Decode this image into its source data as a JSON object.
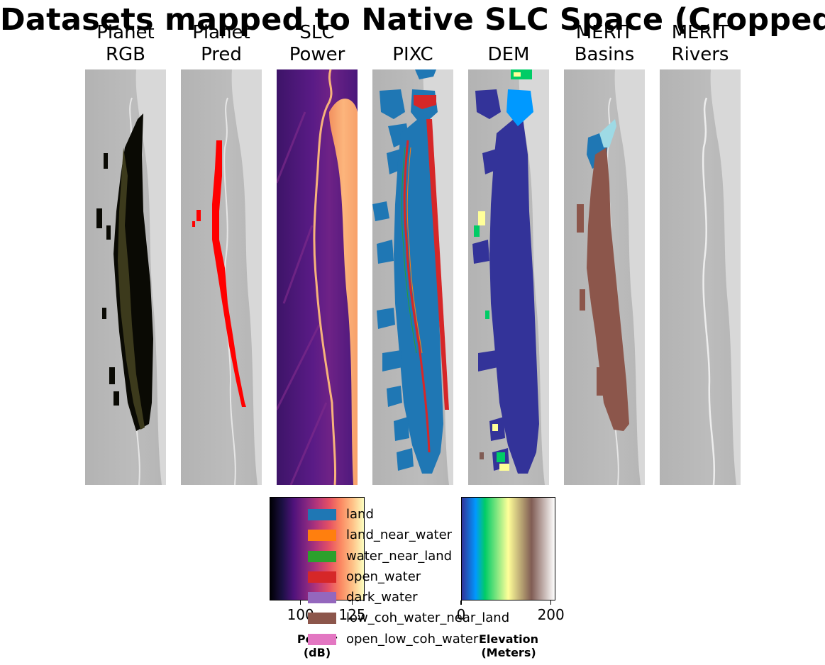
{
  "figure": {
    "suptitle": "Datasets mapped to Native SLC Space (Cropped)"
  },
  "panels": [
    {
      "id": "planet-rgb",
      "line1": "Planet",
      "line2": "RGB"
    },
    {
      "id": "planet-pred",
      "line1": "Planet",
      "line2": "Pred"
    },
    {
      "id": "slc-power",
      "line1": "SLC",
      "line2": "Power"
    },
    {
      "id": "pixc",
      "line1": "PIXC",
      "line2": ""
    },
    {
      "id": "dem",
      "line1": "DEM",
      "line2": ""
    },
    {
      "id": "merit-basins",
      "line1": "MERIT",
      "line2": "Basins"
    },
    {
      "id": "merit-rivers",
      "line1": "MERIT",
      "line2": "Rivers"
    }
  ],
  "colors": {
    "land": "#1f77b4",
    "land_near_water": "#ff7f0e",
    "water_near_land": "#2ca02c",
    "open_water": "#d62728",
    "dark_water": "#9467bd",
    "low_coh_water_near_land": "#8c564b",
    "open_low_coh_water": "#e377c2",
    "background_gray": "#bdbdbd",
    "planet_pred": "#ff0000",
    "merit_basin_light": "#9edae5"
  },
  "chart_data": {
    "type": "heatmap",
    "colorbars": [
      {
        "id": "power",
        "colormap": "magma",
        "ticks": [
          "100",
          "125"
        ],
        "label_line1": "Power",
        "label_line2": "(dB)",
        "range": [
          85,
          131
        ]
      },
      {
        "id": "elevation",
        "colormap": "terrain",
        "ticks": [
          "0",
          "200"
        ],
        "label_line1": "Elevation",
        "label_line2": "(Meters)",
        "range": [
          0,
          210
        ]
      }
    ],
    "legend": {
      "entries": [
        {
          "label": "land",
          "color": "#1f77b4"
        },
        {
          "label": "land_near_water",
          "color": "#ff7f0e"
        },
        {
          "label": "water_near_land",
          "color": "#2ca02c"
        },
        {
          "label": "open_water",
          "color": "#d62728"
        },
        {
          "label": "dark_water",
          "color": "#9467bd"
        },
        {
          "label": "low_coh_water_near_land",
          "color": "#8c564b"
        },
        {
          "label": "open_low_coh_water",
          "color": "#e377c2"
        }
      ]
    }
  }
}
